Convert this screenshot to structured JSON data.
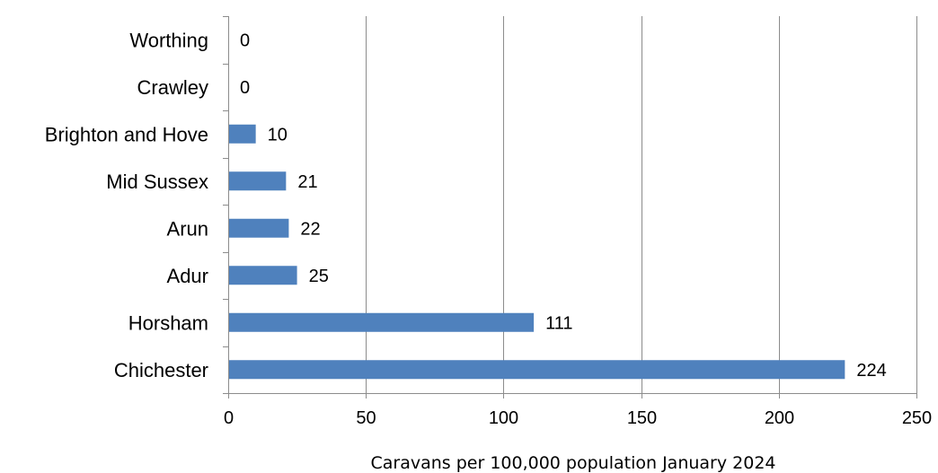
{
  "chart_data": {
    "type": "bar",
    "orientation": "horizontal",
    "categories": [
      "Worthing",
      "Crawley",
      "Brighton and Hove",
      "Mid Sussex",
      "Arun",
      "Adur",
      "Horsham",
      "Chichester"
    ],
    "values": [
      0,
      0,
      10,
      21,
      22,
      25,
      111,
      224
    ],
    "data_labels": [
      "0",
      "0",
      "10",
      "21",
      "22",
      "25",
      "111",
      "224"
    ],
    "xlabel": "Caravans per 100,000 population January 2024",
    "ylabel": "",
    "title": "",
    "xlim": [
      0,
      250
    ],
    "xticks": [
      0,
      50,
      100,
      150,
      200,
      250
    ],
    "xtick_labels": [
      "0",
      "50",
      "100",
      "150",
      "200",
      "250"
    ],
    "grid": "vertical",
    "legend": "none",
    "colors": {
      "bar": "#4f81bd",
      "grid": "#8c8c8c",
      "axis": "#8c8c8c",
      "text": "#000000"
    }
  }
}
